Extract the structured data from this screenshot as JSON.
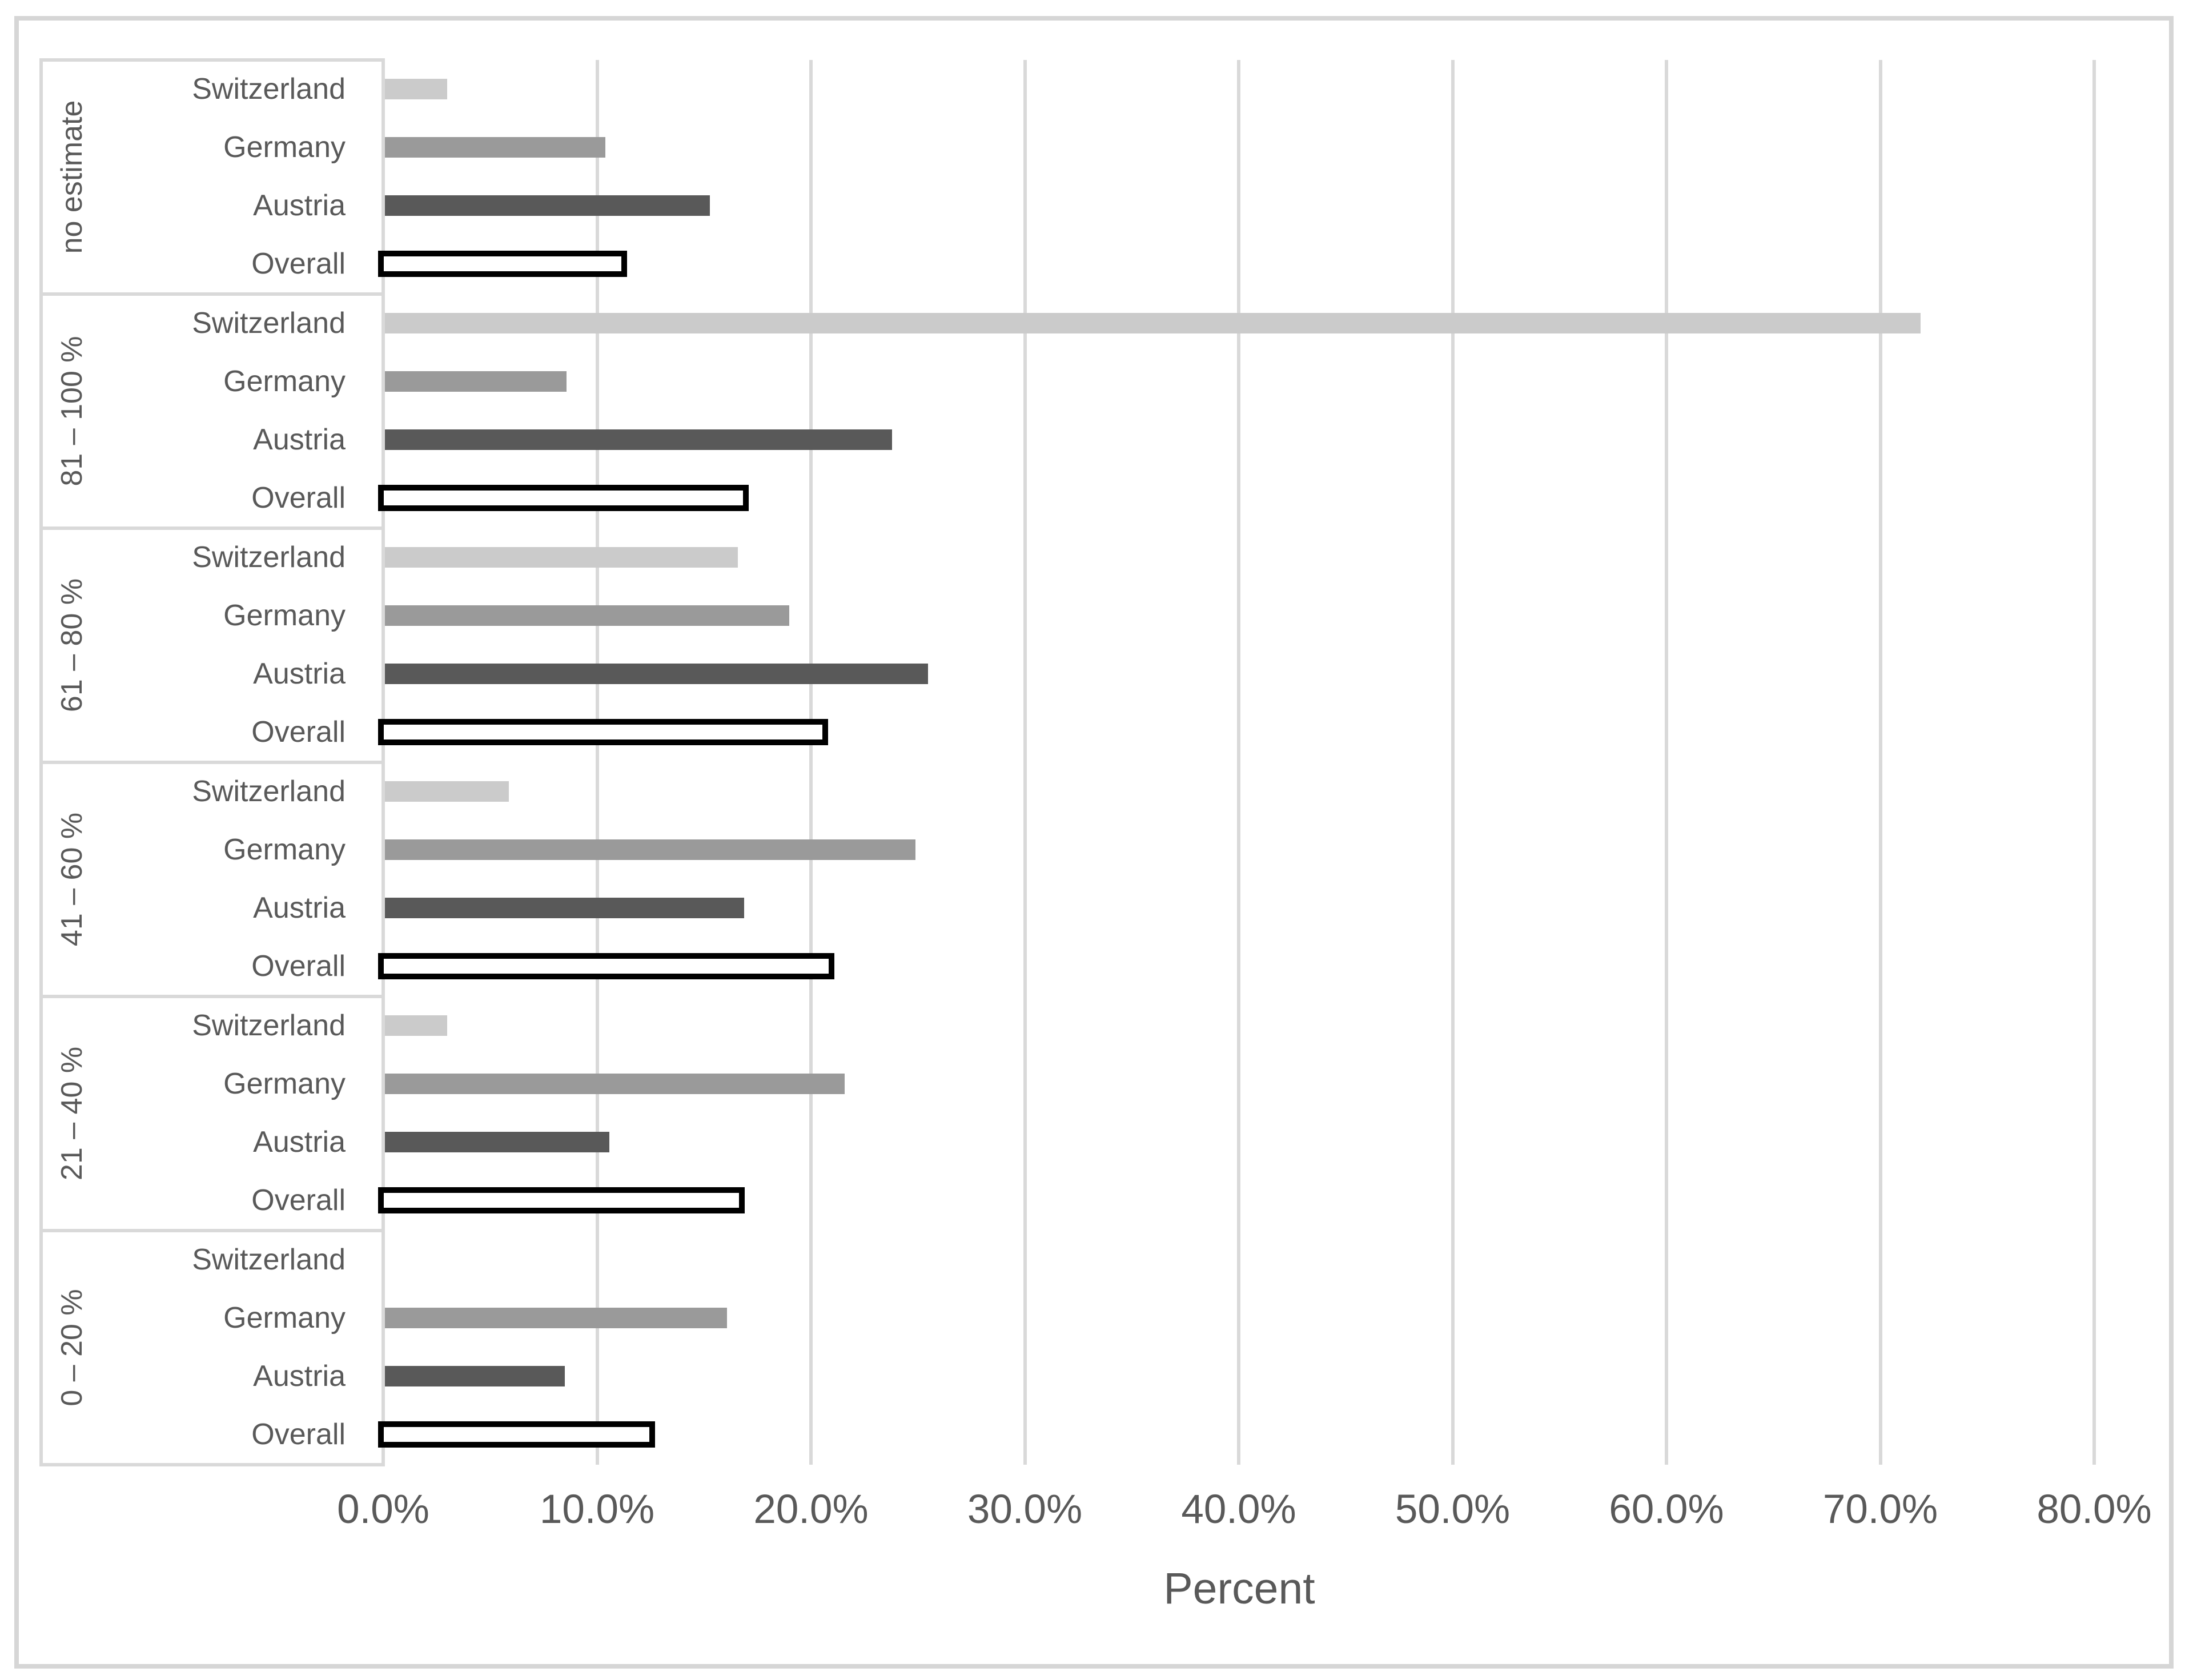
{
  "chart_data": {
    "type": "bar",
    "orientation": "horizontal",
    "xlabel": "Percent",
    "x_ticks": [
      "0.0%",
      "10.0%",
      "20.0%",
      "30.0%",
      "40.0%",
      "50.0%",
      "60.0%",
      "70.0%",
      "80.0%"
    ],
    "xlim": [
      0,
      80
    ],
    "grid": true,
    "legend": "none",
    "value_unit": "percent",
    "bar_order_top_to_bottom": [
      "Switzerland",
      "Germany",
      "Austria",
      "Overall"
    ],
    "groups": [
      {
        "label": "no estimate",
        "bars": [
          {
            "name": "Switzerland",
            "value": 2.9
          },
          {
            "name": "Germany",
            "value": 10.3
          },
          {
            "name": "Austria",
            "value": 15.2
          },
          {
            "name": "Overall",
            "value": 11.4
          }
        ]
      },
      {
        "label": "81 – 100 %",
        "bars": [
          {
            "name": "Switzerland",
            "value": 71.8
          },
          {
            "name": "Germany",
            "value": 8.5
          },
          {
            "name": "Austria",
            "value": 23.7
          },
          {
            "name": "Overall",
            "value": 17.1
          }
        ]
      },
      {
        "label": "61 – 80 %",
        "bars": [
          {
            "name": "Switzerland",
            "value": 16.5
          },
          {
            "name": "Germany",
            "value": 18.9
          },
          {
            "name": "Austria",
            "value": 25.4
          },
          {
            "name": "Overall",
            "value": 20.8
          }
        ]
      },
      {
        "label": "41 – 60 %",
        "bars": [
          {
            "name": "Switzerland",
            "value": 5.8
          },
          {
            "name": "Germany",
            "value": 24.8
          },
          {
            "name": "Austria",
            "value": 16.8
          },
          {
            "name": "Overall",
            "value": 21.1
          }
        ]
      },
      {
        "label": "21 – 40 %",
        "bars": [
          {
            "name": "Switzerland",
            "value": 2.9
          },
          {
            "name": "Germany",
            "value": 21.5
          },
          {
            "name": "Austria",
            "value": 10.5
          },
          {
            "name": "Overall",
            "value": 16.9
          }
        ]
      },
      {
        "label": "0 – 20 %",
        "bars": [
          {
            "name": "Switzerland",
            "value": 0.0
          },
          {
            "name": "Germany",
            "value": 16.0
          },
          {
            "name": "Austria",
            "value": 8.4
          },
          {
            "name": "Overall",
            "value": 12.7
          }
        ]
      }
    ],
    "colors": {
      "switzerland": "#cbcbcb",
      "germany": "#9a9a9a",
      "austria": "#595959",
      "overall_fill": "#ffffff",
      "overall_border": "#000000",
      "gridline": "#d9d9d9",
      "panel_border": "#d9d9d9",
      "text": "#595959",
      "frame": "#d6d6d6"
    }
  }
}
